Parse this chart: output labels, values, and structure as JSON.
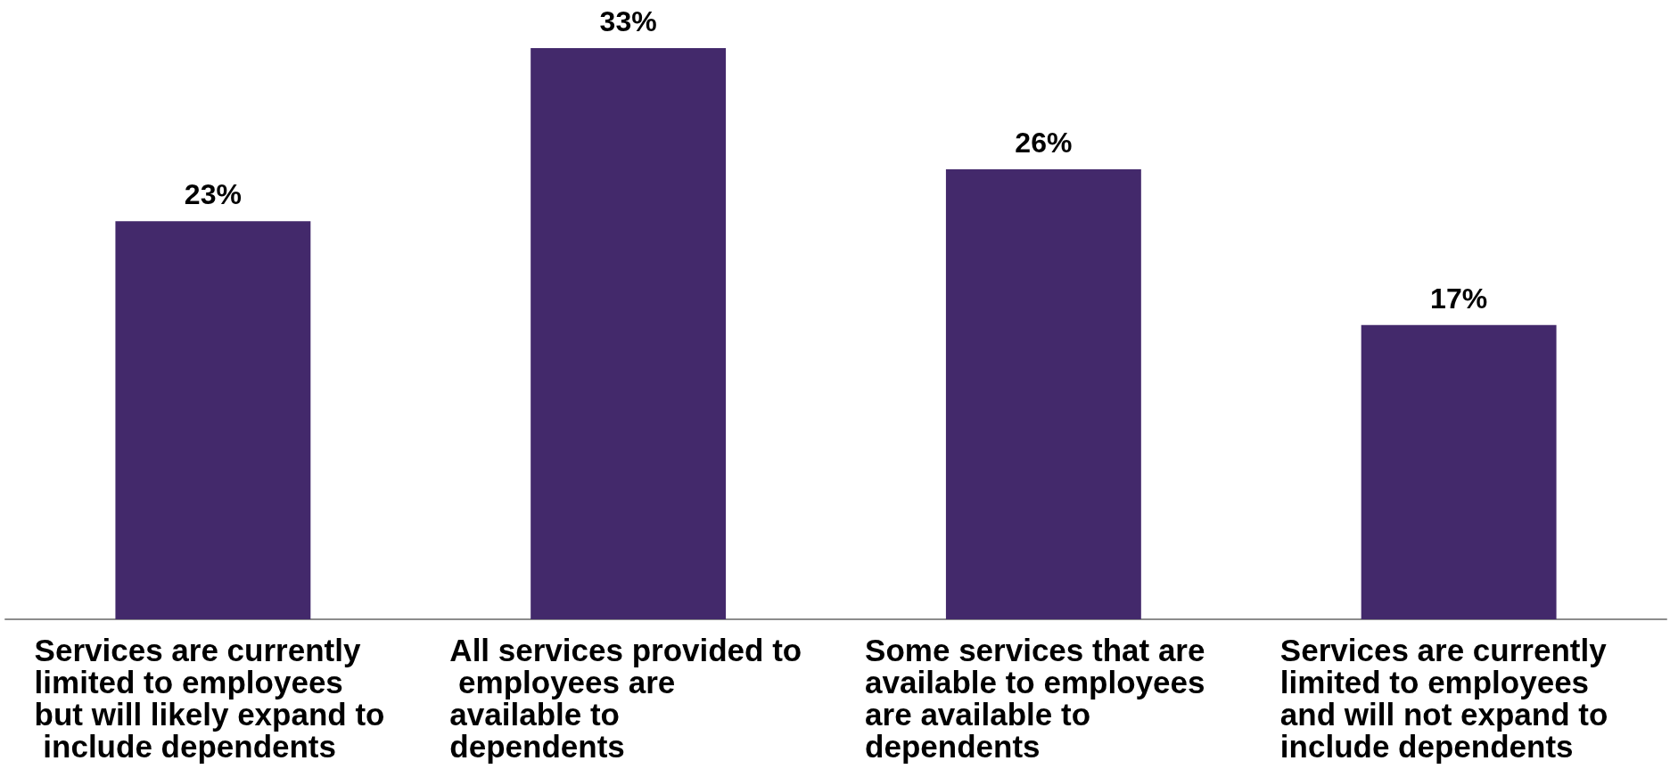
{
  "chart_data": {
    "type": "bar",
    "categories": [
      "Services are currently limited to employees but will likely expand to include dependents",
      "All services provided to employees are available to dependents",
      "Some services that are available to employees are available to dependents",
      "Services are currently limited to employees and will not expand to include dependents"
    ],
    "values": [
      23,
      33,
      26,
      17
    ],
    "value_labels": [
      "23%",
      "33%",
      "26%",
      "17%"
    ],
    "color": "#43296b"
  }
}
